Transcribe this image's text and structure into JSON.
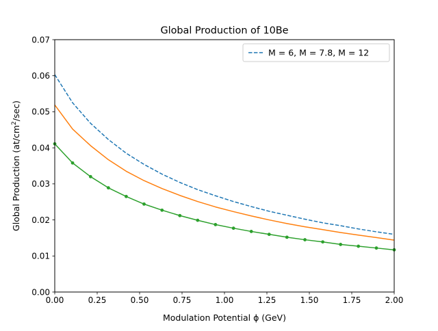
{
  "chart_data": {
    "type": "line",
    "title": "Global Production of 10Be",
    "xlabel": "Modulation Potential ϕ (GeV)",
    "ylabel_parts": {
      "pre": "Global Production (at/cm",
      "sup": "2",
      "post": "/sec)"
    },
    "xlim": [
      0,
      2.0
    ],
    "ylim": [
      0,
      0.07
    ],
    "xticks": [
      "0.00",
      "0.25",
      "0.50",
      "0.75",
      "1.00",
      "1.25",
      "1.50",
      "1.75",
      "2.00"
    ],
    "yticks": [
      "0.00",
      "0.01",
      "0.02",
      "0.03",
      "0.04",
      "0.05",
      "0.06",
      "0.07"
    ],
    "grid": false,
    "legend": {
      "placement": "upper-right",
      "entry": "M = 6, M = 7.8, M = 12"
    },
    "x": [
      0.0,
      0.105,
      0.211,
      0.316,
      0.421,
      0.526,
      0.632,
      0.737,
      0.842,
      0.947,
      1.053,
      1.158,
      1.263,
      1.368,
      1.474,
      1.579,
      1.684,
      1.789,
      1.895,
      2.0
    ],
    "series": [
      {
        "style": "dashed",
        "color": "#1f77b4",
        "values": [
          0.0603,
          0.0525,
          0.0468,
          0.0423,
          0.0385,
          0.0354,
          0.0327,
          0.0304,
          0.0284,
          0.0267,
          0.0251,
          0.0237,
          0.0224,
          0.0213,
          0.0202,
          0.0192,
          0.0184,
          0.0175,
          0.0167,
          0.016
        ]
      },
      {
        "style": "solid",
        "color": "#ff7f0e",
        "values": [
          0.0519,
          0.0452,
          0.0406,
          0.0367,
          0.0335,
          0.0309,
          0.0287,
          0.0268,
          0.0251,
          0.0236,
          0.0223,
          0.0211,
          0.02,
          0.019,
          0.0181,
          0.0173,
          0.0165,
          0.0158,
          0.0151,
          0.0144
        ]
      },
      {
        "style": "solid-markers",
        "color": "#2ca02c",
        "values": [
          0.0411,
          0.0358,
          0.032,
          0.0289,
          0.0265,
          0.0244,
          0.0227,
          0.0212,
          0.0199,
          0.0187,
          0.0177,
          0.0168,
          0.016,
          0.0152,
          0.0145,
          0.0139,
          0.0132,
          0.0127,
          0.0122,
          0.0117
        ]
      }
    ]
  }
}
